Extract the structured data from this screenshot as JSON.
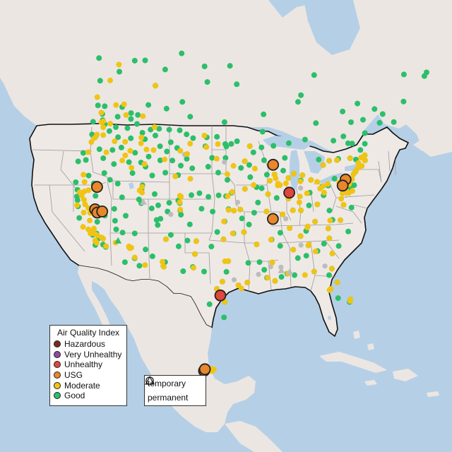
{
  "map": {
    "colors": {
      "ocean": "#b5d0e6",
      "land": "#efe9e6",
      "neighbor_land": "#ece6e2",
      "lake": "#b5d0e6",
      "state_border": "#9a9a9a",
      "country_border": "#111111",
      "Hazardous": "#7a2a1e",
      "Very Unhealthy": "#8e4aa3",
      "Unhealthy": "#e0463a",
      "USG": "#e8872b",
      "Moderate": "#f0c415",
      "Good": "#2bbf6a",
      "No data": "#bcbcbc"
    }
  },
  "legend": {
    "title": "Air Quality Index",
    "categories": [
      {
        "label": "Hazardous",
        "color": "#7a2a1e"
      },
      {
        "label": "Very Unhealthy",
        "color": "#8e4aa3"
      },
      {
        "label": "Unhealthy",
        "color": "#e0463a"
      },
      {
        "label": "USG",
        "color": "#e8872b"
      },
      {
        "label": "Moderate",
        "color": "#f0c415"
      },
      {
        "label": "Good",
        "color": "#2bbf6a"
      }
    ]
  },
  "shape_legend": {
    "items": [
      {
        "label": "temporary",
        "icon": "circle-icon"
      },
      {
        "label": "permanent",
        "icon": "triangle-icon"
      }
    ]
  },
  "monitors": {
    "Good": "-124.2,47.0 -123.0,48.3 -122.5,47.6 -121.8,47.2 -120.5,46.6 -119.5,47.3 -118.5,46.2 -117.2,47.6 -116.0,46.5 -123.5,45.5 -122.7,45.5 -121.2,44.1 -120.0,43.2 -118.8,44.5 -117.3,45.1 -123.8,43.0 -122.9,42.3 -124.1,41.8 -121.5,40.6 -120.2,39.9 -119.0,41.5 -117.8,42.9 -115.2,43.6 -114.1,42.4 -113.0,43.9 -112.0,43.5 -111.8,44.8 -114.5,44.9 -113.2,46.8 -114.0,47.5 -111.3,47.5 -110.0,46.3 -108.5,45.8 -106.6,46.4 -104.5,45.2 -108.0,47.0 -105.0,48.2 -106.5,48.6 -108.7,48.5 -110.8,48.4 -112.5,48.1 -115.5,48.4 -117.0,48.8 -119.8,48.6 -109.5,44.6 -107.2,44.8 -105.5,44.3 -105.8,43.1 -108.2,43.2 -110.5,42.6 -111.9,41.2 -111.9,40.7 -112.0,39.4 -113.6,37.1 -111.5,39.0 -109.5,40.4 -109.6,38.6 -108.6,39.1 -108.5,37.3 -106.8,39.6 -105.3,40.0 -105.0,39.7 -104.8,38.8 -104.6,38.3 -103.0,37.2 -106.9,38.5 -107.9,37.5 -106.6,35.1 -105.9,35.7 -108.2,36.7 -104.5,34.4 -103.2,35.2 -106.3,32.3 -108.3,32.8 -110.9,32.2 -112.0,33.4 -111.6,35.2 -113.5,35.0 -114.6,35.2 -112.2,31.5 -110.0,31.4 -109.5,33.5 -115.1,36.2 -116.9,36.5 -117.8,35.5 -114.9,39.2 -116.2,40.7 -117.7,40.9 -119.3,38.5 -115.7,37.6 -122.5,38.5 -123.2,39.3 -122.2,37.7 -121.9,37.3 -121.5,36.6 -120.7,35.3 -118.3,34.1 -117.9,33.8 -117.4,34.1 -116.9,33.6 -117.1,32.7 -116.0,33.0 -115.5,32.8 -103.1,40.8 -101.7,41.1 -100.1,40.7 -98.3,40.9 -97.0,40.8 -96.0,41.2 -96.7,42.8 -98.4,43.7 -100.3,44.4 -101.0,46.9 -103.6,47.8 -100.8,48.0 -98.7,48.1 -97.0,47.2 -96.8,46.9 -97.0,45.5 -99.6,45.5 -103.3,44.1 -101.2,39.2 -99.3,38.9 -97.3,37.7 -95.7,39.0 -96.6,39.2 -94.6,39.1 -94.4,38.0 -98.5,36.4 -97.5,35.5 -95.9,36.2 -99.4,34.6 -101.8,35.2 -101.9,33.6 -100.4,31.5 -102.1,32.0 -103.5,31.4 -106.5,31.8 -98.5,29.4 -97.7,30.3 -97.1,31.5 -96.8,32.8 -95.4,29.8 -94.1,30.1 -97.4,27.8 -97.5,25.9 -99.5,27.5 -93.8,32.5 -92.1,32.5 -91.2,30.5 -90.1,30.0 -91.5,31.5 -92.3,34.7 -94.2,36.3 -93.3,37.2 -90.2,38.6 -91.5,39.8 -92.3,38.6 -93.6,41.6 -91.5,41.7 -90.6,41.5 -92.5,43.0 -94.1,44.2 -93.3,45.0 -92.1,46.8 -94.6,47.5 -95.8,47.2 -92.5,44.5 -89.4,43.1 -88.0,43.0 -89.6,44.9 -91.5,46.0 -89.8,46.5 -87.4,46.5 -85.6,44.8 -84.5,42.7 -83.0,42.3 -85.6,42.3 -86.3,43.3 -87.6,41.8 -88.2,40.1 -89.6,40.7 -89.0,37.9 -86.2,39.8 -87.6,38.0 -85.8,38.3 -84.5,38.1 -83.0,38.5 -82.4,40.0 -81.7,41.5 -83.5,41.7 -80.0,40.4 -79.0,40.3 -77.6,40.9 -76.3,40.0 -75.2,40.0 -74.2,40.7 -73.8,42.7 -75.9,43.1 -76.2,43.0 -77.6,43.2 -78.9,42.9 -73.2,44.5 -72.5,44.3 -71.5,43.2 -70.3,43.7 -69.5,44.9 -68.8,46.5 -71.1,42.4 -72.7,41.8 -71.4,41.8 -72.9,42.3 -74.7,39.4 -75.5,39.2 -76.6,39.3 -77.0,38.9 -77.4,37.5 -76.3,36.9 -79.9,37.3 -81.6,38.4 -80.2,39.3 -82.6,36.4 -84.3,35.5 -86.8,36.2 -85.3,35.0 -89.9,35.1 -88.4,35.8 -86.8,33.5 -88.2,30.7 -86.3,32.4 -85.0,32.5 -84.4,33.7 -83.2,32.8 -81.1,32.1 -82.0,33.5 -79.9,32.8 -81.0,34.0 -80.8,35.2 -78.6,35.8 -77.9,34.2 -79.8,36.1 -81.7,30.3 -82.3,29.6 -84.3,30.4 -82.5,27.9 -81.4,28.5 -80.2,26.1 -80.4,25.8 -81.8,26.6 -87.2,30.4 -89.1,30.4 -90.2,32.3 -88.7,34.2 -110.0,51.0 -113.5,53.5 -114.1,51.0 -106.7,52.1 -104.6,50.4 -97.1,49.9 -89.2,48.4 -84.3,46.5 -81.0,46.5 -79.4,43.7 -75.7,45.4 -73.6,45.5 -71.2,46.8 -66.1,45.3 -63.6,44.6 -123.1,49.3 -119.5,49.9 -117.3,49.5 -115.8,49.5 -122.7,53.9 -124.5,49.1 -126.1,52.0 -128.5,54.5 -120.0,55.8 -117.5,56.2 -112.0,55.7 -101.2,54.8 -94.0,54.5 -88.5,50.5 -80.5,51.2 -78.0,48.1 -72.0,48.4 -68.5,48.6 -65.8,47.1 -60.0,46.2 -53.7,47.4 -52.9,47.6 -57.0,49.0 -64.8,46.1 -79.5,51.9 -75.2,53.8 -102.1,56.7 -108.5,58.0 -95.5,56.8",
    "Moderate": "-122.3,47.5 -122.6,47.3 -121.9,46.8 -120.8,47.5 -122.6,45.7 -122.8,45.2 -123.1,44.6 -121.4,45.9 -118.9,45.6 -123.0,43.3 -119.8,44.0 -116.5,43.6 -116.2,44.3 -116.9,45.9 -115.5,45.0 -114.0,46.9 -113.8,46.2 -112.5,45.6 -111.1,45.7 -112.3,43.8 -114.5,43.0 -111.9,41.0 -111.7,40.3 -112.2,40.5 -121.8,39.7 -121.3,38.6 -121.5,38.0 -120.9,37.6 -120.5,37.1 -119.8,36.8 -119.3,36.3 -119.0,35.4 -120.3,36.1 -118.5,34.2 -118.1,34.0 -117.6,34.0 -117.2,33.9 -116.5,33.8 -116.2,33.7 -117.3,33.2 -115.5,32.9 -117.0,33.0 -118.8,34.3 -119.7,34.4 -122.0,38.3 -122.4,40.5 -118.3,33.9 -118.0,34.6 -120.7,38.9 -121.7,36.7 -114.2,33.6 -112.1,33.5 -111.9,33.3 -111.7,33.4 -110.9,32.3 -109.2,31.6 -106.5,31.8 -106.7,32.3 -106.6,35.1 -105.0,39.8 -104.9,40.5 -104.8,38.9 -105.1,40.6 -103.5,42.8 -106.3,42.9 -108.7,44.8 -105.9,46.1 -104.1,47.1 -100.8,46.8 -98.7,45.4 -101.3,48.2 -96.7,40.8 -95.9,41.3 -96.7,43.5 -97.4,37.7 -96.6,39.1 -95.7,39.0 -94.6,39.1 -97.5,35.5 -96.0,36.2 -96.8,32.8 -97.3,32.8 -97.7,30.3 -98.5,29.4 -95.4,29.8 -95.0,29.4 -94.1,30.1 -97.4,27.8 -101.8,35.2 -101.9,33.6 -102.0,31.9 -106.4,31.7 -93.3,45.0 -93.6,41.6 -92.1,46.8 -91.5,44.0 -90.2,38.6 -89.6,40.7 -89.0,42.3 -88.0,43.0 -87.9,42.5 -87.6,41.8 -87.7,41.6 -86.2,41.7 -87.3,41.6 -85.6,42.3 -84.5,42.7 -83.0,42.3 -83.6,41.6 -81.7,41.5 -82.9,40.0 -84.5,39.1 -84.2,39.8 -86.2,39.8 -87.6,38.0 -85.8,38.3 -84.5,38.1 -86.8,36.2 -85.3,35.0 -84.0,35.9 -83.9,36.0 -90.0,35.1 -92.3,34.7 -94.2,36.3 -90.2,32.3 -91.1,30.5 -90.1,30.0 -88.1,30.7 -86.8,33.5 -84.4,33.7 -84.3,33.8 -83.5,32.8 -81.1,32.1 -81.0,34.0 -80.8,35.2 -80.2,36.1 -78.6,35.8 -77.4,37.5 -77.0,38.9 -76.6,39.3 -75.5,39.7 -75.2,40.0 -74.7,40.2 -74.2,40.7 -74.0,40.8 -73.7,40.9 -73.2,41.2 -72.9,41.3 -72.7,41.8 -71.4,41.8 -71.1,42.4 -71.9,42.3 -73.8,42.7 -76.2,43.0 -77.6,43.2 -78.9,42.9 -79.9,40.4 -80.5,40.2 -80.7,41.1 -79.0,40.5 -77.0,40.3 -76.4,40.3 -75.9,40.6 -76.3,39.1 -76.5,38.9 -77.5,38.3 -76.0,38.7 -75.3,38.8 -72.3,41.3 -82.6,36.4 -81.6,38.4 -80.0,39.6 -81.7,30.3 -82.5,27.9 -82.7,27.8 -80.2,26.1 -80.3,25.9 -81.4,28.5 -84.3,30.4 -85.7,30.2 -124.0,52.5 -125.3,50.0 -119.3,50.3 -118.2,49.1 -113.5,53.5 -111.8,48.5 -114.7,49.5 -104.5,45.8 -98.5,47.2 -95.5,44.5 -92.0,42.0 -123.4,54.7 -120.9,49.9 -99.1,19.6 -99.0,19.3 -98.8,19.5 -99.3,19.3 -123.3,48.4"
  },
  "temporary": [
    {
      "category": "Unhealthy",
      "lon": -98.0,
      "lat": 28.6
    },
    {
      "category": "Unhealthy",
      "lon": -85.9,
      "lat": 40.5
    },
    {
      "category": "USG",
      "lon": -88.0,
      "lat": 44.2
    },
    {
      "category": "USG",
      "lon": -89.3,
      "lat": 37.6
    },
    {
      "category": "USG",
      "lon": -75.8,
      "lat": 40.4
    },
    {
      "category": "USG",
      "lon": -76.6,
      "lat": 39.8
    },
    {
      "category": "USG",
      "lon": -119.5,
      "lat": 39.6
    },
    {
      "category": "USG",
      "lon": -118.7,
      "lat": 36.9
    },
    {
      "category": "USG",
      "lon": -118.2,
      "lat": 36.6
    },
    {
      "category": "USG",
      "lon": -117.5,
      "lat": 36.9
    },
    {
      "category": "Unhealthy",
      "lon": -100.0,
      "lat": 19.3
    },
    {
      "category": "USG",
      "lon": -99.9,
      "lat": 19.5
    }
  ],
  "permanent": [
    {
      "category": "Good",
      "lon": -113.9,
      "lat": 33.9
    },
    {
      "category": "No data",
      "lon": -111.2,
      "lat": 39.2
    },
    {
      "category": "No data",
      "lon": -89.0,
      "lat": 31.2
    },
    {
      "category": "No data",
      "lon": -87.8,
      "lat": 30.9
    }
  ],
  "no_data_sites": "-105.0,45.7 -97.2,45.0 -90.5,31.8 -82.6,30.8 -96.0,30.5 -92.4,31.0 -85.5,33.9 -89.0,31.6 -106.3,38.2 -95.0,40.0 -83.8,40.8 -87.2,37.4"
}
